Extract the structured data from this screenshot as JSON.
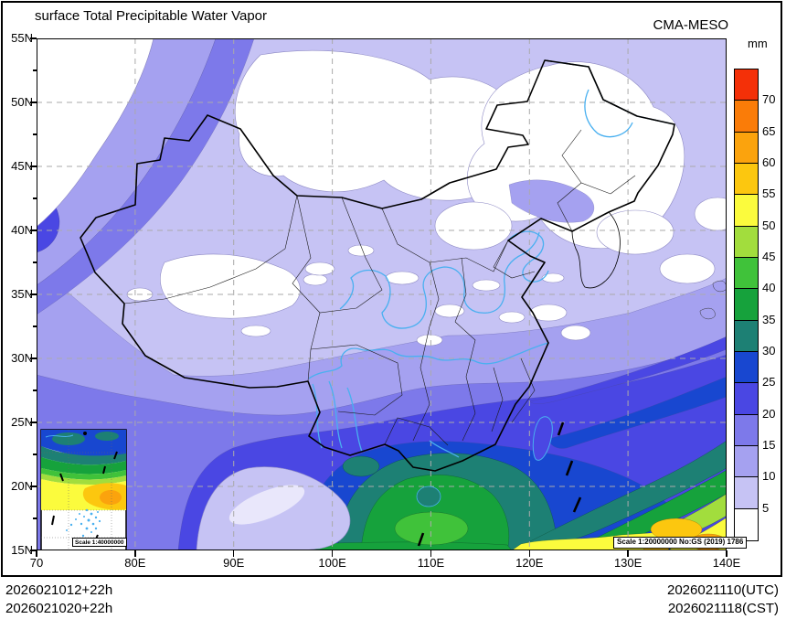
{
  "header": {
    "title": "surface Total Precipitable Water Vapor",
    "model": "CMA-MESO"
  },
  "colorbar": {
    "unit": "mm",
    "levels": [
      5,
      10,
      15,
      20,
      25,
      30,
      35,
      40,
      45,
      50,
      55,
      60,
      65,
      70
    ],
    "colors": [
      "#ffffff",
      "#c6c3f4",
      "#a5a1f0",
      "#7d79ea",
      "#4a47e3",
      "#1847d0",
      "#1d8074",
      "#16a23c",
      "#40c23a",
      "#a2dd3d",
      "#fbfb3d",
      "#fcc70f",
      "#fba30d",
      "#fa7c08",
      "#f43008"
    ]
  },
  "axes": {
    "lat": [
      "55N",
      "50N",
      "45N",
      "40N",
      "35N",
      "30N",
      "25N",
      "20N",
      "15N"
    ],
    "lon": [
      "70",
      "80E",
      "90E",
      "100E",
      "110E",
      "120E",
      "130E",
      "140E"
    ]
  },
  "footer": {
    "runs": [
      "2026021012+22h",
      "2026021020+22h"
    ],
    "valid": [
      "2026021110(UTC)",
      "2026021118(CST)"
    ]
  },
  "scales": {
    "main": "Scale 1:20000000 No:GS (2019) 1786",
    "inset": "Scale 1:40000000"
  },
  "map_colors": {
    "river": "#49b0f0",
    "border": "#000000",
    "grid": "#aaaaaa"
  }
}
